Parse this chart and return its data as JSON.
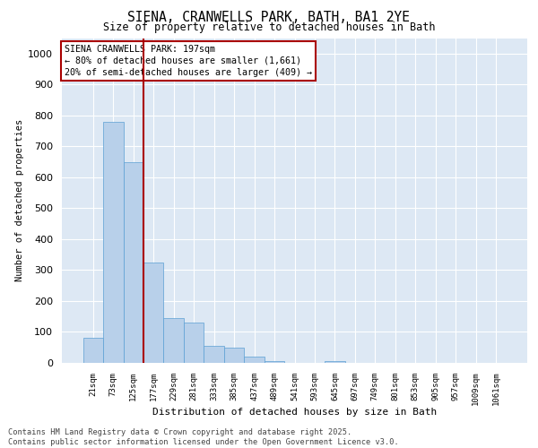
{
  "title_line1": "SIENA, CRANWELLS PARK, BATH, BA1 2YE",
  "title_line2": "Size of property relative to detached houses in Bath",
  "xlabel": "Distribution of detached houses by size in Bath",
  "ylabel": "Number of detached properties",
  "bar_labels": [
    "21sqm",
    "73sqm",
    "125sqm",
    "177sqm",
    "229sqm",
    "281sqm",
    "333sqm",
    "385sqm",
    "437sqm",
    "489sqm",
    "541sqm",
    "593sqm",
    "645sqm",
    "697sqm",
    "749sqm",
    "801sqm",
    "853sqm",
    "905sqm",
    "957sqm",
    "1009sqm",
    "1061sqm"
  ],
  "bar_values": [
    80,
    780,
    650,
    325,
    145,
    130,
    55,
    50,
    20,
    5,
    0,
    0,
    5,
    0,
    0,
    0,
    0,
    0,
    0,
    0,
    0
  ],
  "bar_color": "#b8d0ea",
  "bar_edge_color": "#5a9fd4",
  "vline_pos": 2.5,
  "vline_color": "#aa0000",
  "annotation_text": "SIENA CRANWELLS PARK: 197sqm\n← 80% of detached houses are smaller (1,661)\n20% of semi-detached houses are larger (409) →",
  "annotation_edge_color": "#aa0000",
  "annotation_face_color": "#ffffff",
  "ylim": [
    0,
    1050
  ],
  "yticks": [
    0,
    100,
    200,
    300,
    400,
    500,
    600,
    700,
    800,
    900,
    1000
  ],
  "background_color": "#dde8f4",
  "grid_color": "#ffffff",
  "footnote": "Contains HM Land Registry data © Crown copyright and database right 2025.\nContains public sector information licensed under the Open Government Licence v3.0.",
  "fig_bg": "#ffffff"
}
